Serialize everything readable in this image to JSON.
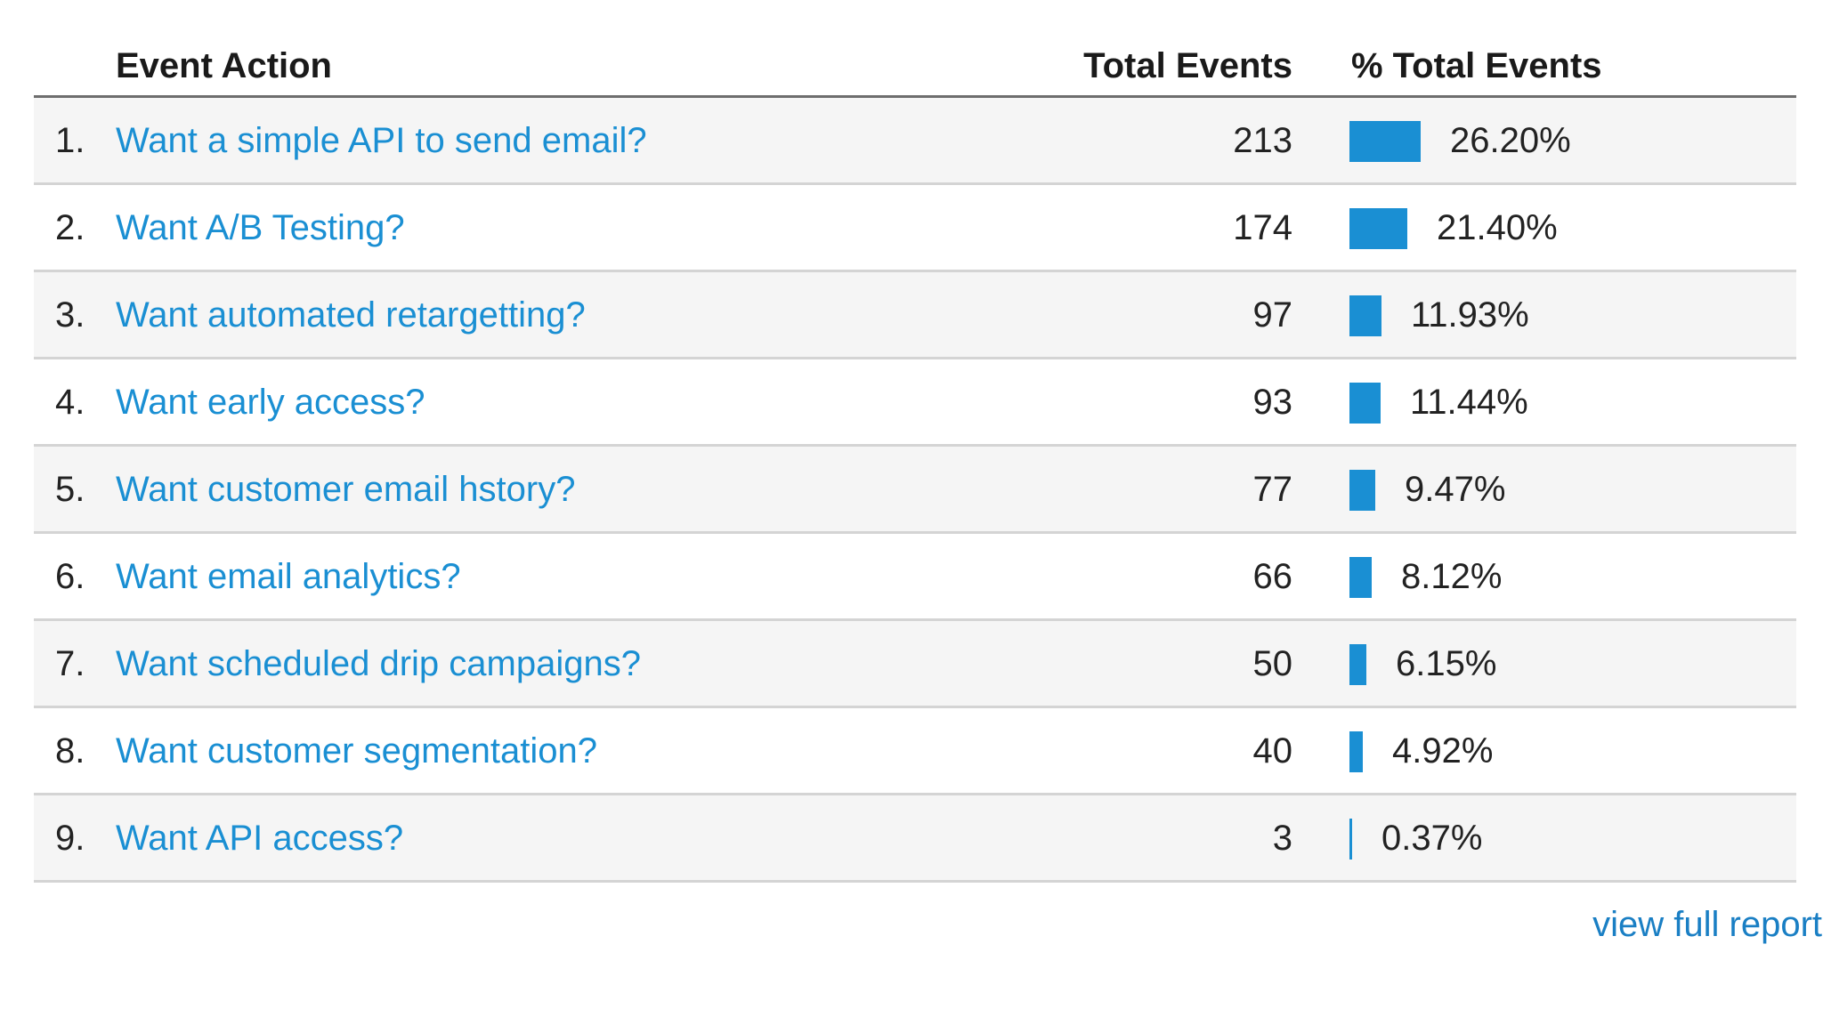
{
  "table": {
    "headers": {
      "action": "Event Action",
      "total": "Total Events",
      "percent": "% Total Events"
    },
    "rows": [
      {
        "index": "1.",
        "action": "Want a simple API to send email?",
        "total": "213",
        "percent_label": "26.20%",
        "percent": 26.2
      },
      {
        "index": "2.",
        "action": "Want A/B Testing?",
        "total": "174",
        "percent_label": "21.40%",
        "percent": 21.4
      },
      {
        "index": "3.",
        "action": "Want automated retargetting?",
        "total": "97",
        "percent_label": "11.93%",
        "percent": 11.93
      },
      {
        "index": "4.",
        "action": "Want early access?",
        "total": "93",
        "percent_label": "11.44%",
        "percent": 11.44
      },
      {
        "index": "5.",
        "action": "Want customer email hstory?",
        "total": "77",
        "percent_label": "9.47%",
        "percent": 9.47
      },
      {
        "index": "6.",
        "action": "Want email analytics?",
        "total": "66",
        "percent_label": "8.12%",
        "percent": 8.12
      },
      {
        "index": "7.",
        "action": "Want scheduled drip campaigns?",
        "total": "50",
        "percent_label": "6.15%",
        "percent": 6.15
      },
      {
        "index": "8.",
        "action": "Want customer segmentation?",
        "total": "40",
        "percent_label": "4.92%",
        "percent": 4.92
      },
      {
        "index": "9.",
        "action": "Want API access?",
        "total": "3",
        "percent_label": "0.37%",
        "percent": 0.37
      }
    ]
  },
  "footer": {
    "link": "view full report"
  },
  "colors": {
    "link": "#1a8fd3",
    "bar": "#1a8fd3",
    "row_alt": "#f5f5f5"
  }
}
